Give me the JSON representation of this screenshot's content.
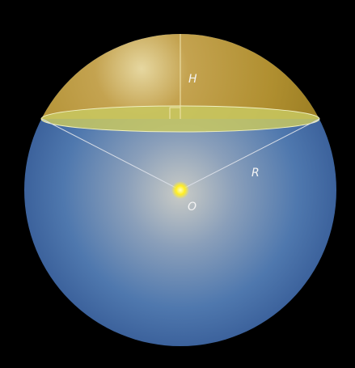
{
  "labels": {
    "height": "H",
    "radius": "R",
    "center": "O"
  }
}
